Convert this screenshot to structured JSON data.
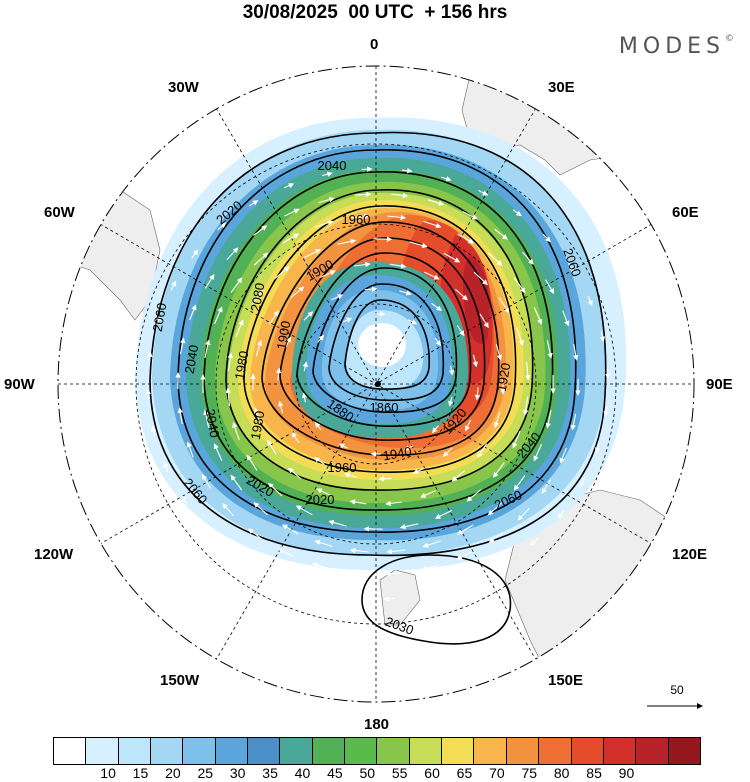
{
  "header": {
    "title": "30/08/2025  00 UTC  + 156 hrs",
    "brand": "MODES",
    "brand_mark": "©"
  },
  "map": {
    "projection": "south-polar-stereographic",
    "longitude_labels": {
      "top": "0",
      "top_right": "30E",
      "right_upper": "60E",
      "right": "90E",
      "right_lower": "120E",
      "bottom_right": "150E",
      "bottom": "180",
      "bottom_left": "150W",
      "left_lower": "120W",
      "left": "90W",
      "left_upper": "60W",
      "top_left": "30W"
    },
    "contour_labels": [
      "2040",
      "1960",
      "2020",
      "1900",
      "2060",
      "2080",
      "1900",
      "2060",
      "2040",
      "1980",
      "1920",
      "1980",
      "2040",
      "1880",
      "1860",
      "1920",
      "1940",
      "1960",
      "2020",
      "2020",
      "2060",
      "2060",
      "2040",
      "2030"
    ],
    "shaded_quantity_colors": [
      "#ffffff",
      "#d6f0ff",
      "#bde5fb",
      "#a3d7f4",
      "#7ec0ec",
      "#5aa6dc",
      "#4a8fc7",
      "#49a898",
      "#52b155",
      "#58bb4a",
      "#88c64b",
      "#c7dd57",
      "#f4dd56",
      "#f7b54b",
      "#f3923f",
      "#ef6e33",
      "#e44c2c",
      "#d2302a",
      "#b8232a",
      "#94181c"
    ]
  },
  "colorbar": {
    "colors": [
      "#ffffff",
      "#d6f0ff",
      "#bde5fb",
      "#a3d7f4",
      "#7ec0ec",
      "#5aa6dc",
      "#4a8fc7",
      "#49a898",
      "#52b155",
      "#58bb4a",
      "#88c64b",
      "#c7dd57",
      "#f4dd56",
      "#f7b54b",
      "#f3923f",
      "#ef6e33",
      "#e44c2c",
      "#d2302a",
      "#b8232a",
      "#94181c"
    ],
    "ticks": [
      "10",
      "15",
      "20",
      "25",
      "30",
      "35",
      "40",
      "45",
      "50",
      "55",
      "60",
      "65",
      "70",
      "75",
      "80",
      "85",
      "90"
    ]
  },
  "reference_vector": {
    "label": "50"
  }
}
